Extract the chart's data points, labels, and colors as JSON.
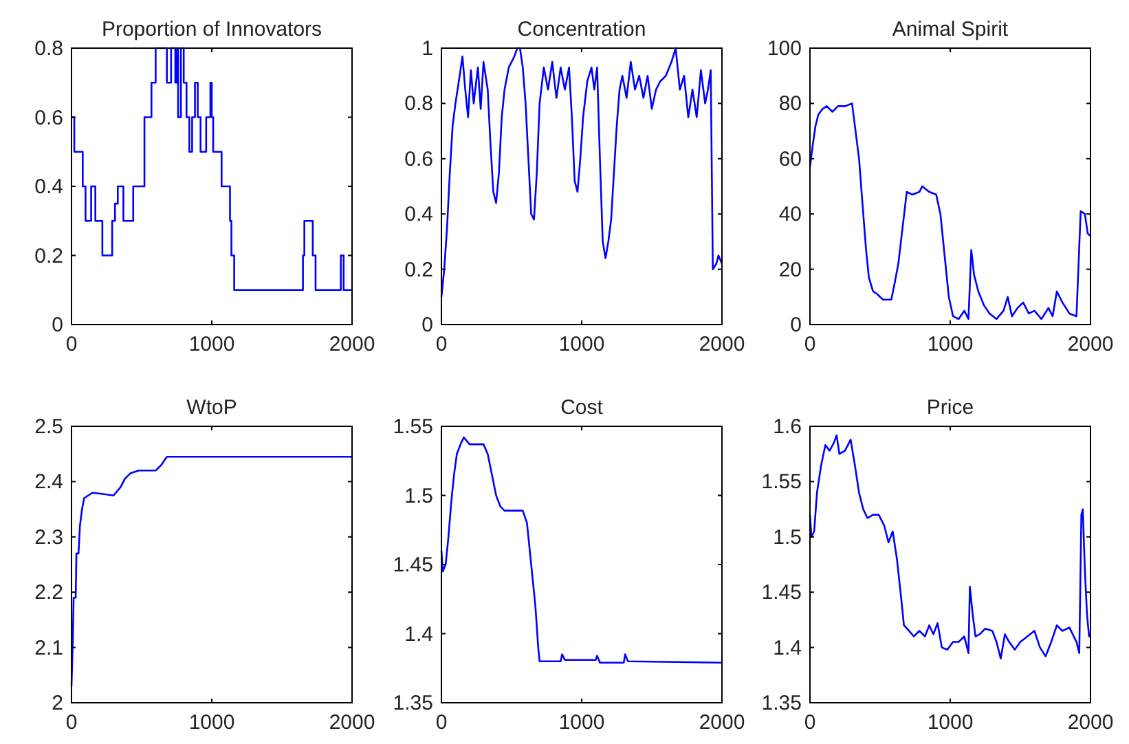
{
  "chart_data": [
    {
      "type": "step",
      "title": "Proportion of Innovators",
      "xlim": [
        0,
        2000
      ],
      "xticks": [
        0,
        1000,
        2000
      ],
      "ylim": [
        0,
        0.8
      ],
      "yticks": [
        0,
        0.2,
        0.4,
        0.6,
        0.8
      ],
      "grid": false,
      "series": [
        {
          "color": "#0000ff",
          "x": [
            0,
            20,
            80,
            100,
            140,
            170,
            220,
            290,
            310,
            330,
            370,
            440,
            520,
            570,
            600,
            680,
            710,
            740,
            750,
            760,
            780,
            800,
            820,
            840,
            860,
            880,
            900,
            920,
            960,
            990,
            1000,
            1010,
            1070,
            1130,
            1140,
            1160,
            1650,
            1660,
            1720,
            1740,
            1920,
            1940,
            2000
          ],
          "values": [
            0.6,
            0.5,
            0.4,
            0.3,
            0.4,
            0.3,
            0.2,
            0.3,
            0.35,
            0.4,
            0.3,
            0.4,
            0.6,
            0.7,
            0.8,
            0.7,
            0.8,
            0.7,
            0.8,
            0.6,
            0.8,
            0.7,
            0.6,
            0.5,
            0.6,
            0.7,
            0.6,
            0.5,
            0.6,
            0.7,
            0.6,
            0.5,
            0.4,
            0.3,
            0.2,
            0.1,
            0.2,
            0.3,
            0.2,
            0.1,
            0.2,
            0.1,
            0.1
          ]
        }
      ]
    },
    {
      "type": "line",
      "title": "Concentration",
      "xlim": [
        0,
        2000
      ],
      "xticks": [
        0,
        1000,
        2000
      ],
      "ylim": [
        0,
        1
      ],
      "yticks": [
        0,
        0.2,
        0.4,
        0.6,
        0.8,
        1
      ],
      "grid": false,
      "series": [
        {
          "color": "#0000ff",
          "x": [
            0,
            20,
            40,
            60,
            80,
            100,
            130,
            150,
            170,
            190,
            210,
            230,
            260,
            280,
            300,
            330,
            350,
            370,
            390,
            410,
            430,
            450,
            480,
            520,
            540,
            560,
            580,
            600,
            620,
            640,
            660,
            680,
            700,
            730,
            760,
            790,
            820,
            850,
            880,
            910,
            930,
            950,
            970,
            990,
            1010,
            1040,
            1070,
            1090,
            1110,
            1130,
            1150,
            1170,
            1190,
            1210,
            1230,
            1250,
            1270,
            1290,
            1320,
            1350,
            1380,
            1410,
            1440,
            1470,
            1500,
            1530,
            1560,
            1600,
            1640,
            1670,
            1700,
            1730,
            1760,
            1790,
            1820,
            1850,
            1880,
            1900,
            1920,
            1935,
            1960,
            1975,
            2000
          ],
          "values": [
            0.1,
            0.2,
            0.35,
            0.55,
            0.72,
            0.8,
            0.9,
            0.97,
            0.85,
            0.75,
            0.92,
            0.8,
            0.93,
            0.78,
            0.95,
            0.85,
            0.65,
            0.48,
            0.44,
            0.55,
            0.75,
            0.85,
            0.93,
            0.97,
            1,
            1,
            0.93,
            0.8,
            0.6,
            0.4,
            0.38,
            0.55,
            0.8,
            0.93,
            0.85,
            0.95,
            0.82,
            0.93,
            0.85,
            0.93,
            0.75,
            0.52,
            0.48,
            0.6,
            0.75,
            0.88,
            0.93,
            0.85,
            0.93,
            0.6,
            0.3,
            0.24,
            0.3,
            0.38,
            0.55,
            0.72,
            0.85,
            0.9,
            0.82,
            0.95,
            0.85,
            0.9,
            0.82,
            0.9,
            0.78,
            0.85,
            0.88,
            0.9,
            0.95,
            1,
            0.85,
            0.9,
            0.75,
            0.85,
            0.75,
            0.92,
            0.8,
            0.85,
            0.92,
            0.2,
            0.22,
            0.25,
            0.22
          ]
        }
      ]
    },
    {
      "type": "line",
      "title": "Animal Spirit",
      "xlim": [
        0,
        2000
      ],
      "xticks": [
        0,
        1000,
        2000
      ],
      "ylim": [
        0,
        100
      ],
      "yticks": [
        0,
        20,
        40,
        60,
        80,
        100
      ],
      "grid": false,
      "series": [
        {
          "color": "#0000ff",
          "x": [
            0,
            20,
            40,
            60,
            90,
            120,
            160,
            200,
            250,
            300,
            320,
            350,
            380,
            400,
            420,
            450,
            480,
            520,
            580,
            600,
            630,
            660,
            690,
            730,
            780,
            800,
            850,
            900,
            930,
            960,
            990,
            1020,
            1060,
            1100,
            1130,
            1150,
            1170,
            1200,
            1240,
            1280,
            1330,
            1380,
            1410,
            1440,
            1480,
            1520,
            1560,
            1600,
            1650,
            1700,
            1730,
            1760,
            1800,
            1850,
            1900,
            1930,
            1960,
            1980,
            2000
          ],
          "values": [
            57,
            65,
            72,
            76,
            78,
            79,
            77,
            79,
            79,
            80,
            72,
            60,
            40,
            27,
            17,
            12,
            11,
            9,
            9,
            14,
            22,
            35,
            48,
            47,
            48,
            50,
            48,
            47,
            40,
            25,
            10,
            3,
            2,
            5,
            2,
            27,
            18,
            12,
            7,
            4,
            2,
            5,
            10,
            3,
            6,
            8,
            4,
            5,
            2,
            6,
            3,
            12,
            8,
            4,
            3,
            41,
            40,
            33,
            32
          ]
        }
      ]
    },
    {
      "type": "line",
      "title": "WtoP",
      "xlim": [
        0,
        2000
      ],
      "xticks": [
        0,
        1000,
        2000
      ],
      "ylim": [
        2,
        2.5
      ],
      "yticks": [
        2,
        2.1,
        2.2,
        2.3,
        2.4,
        2.5
      ],
      "grid": false,
      "series": [
        {
          "color": "#0000ff",
          "x": [
            0,
            10,
            15,
            30,
            35,
            50,
            60,
            75,
            90,
            150,
            300,
            350,
            380,
            420,
            480,
            600,
            640,
            680,
            2000
          ],
          "values": [
            2.03,
            2.12,
            2.19,
            2.19,
            2.27,
            2.27,
            2.32,
            2.35,
            2.37,
            2.38,
            2.375,
            2.39,
            2.405,
            2.415,
            2.42,
            2.42,
            2.43,
            2.445,
            2.445
          ]
        }
      ]
    },
    {
      "type": "line",
      "title": "Cost",
      "xlim": [
        0,
        2000
      ],
      "xticks": [
        0,
        1000,
        2000
      ],
      "ylim": [
        1.35,
        1.55
      ],
      "yticks": [
        1.35,
        1.4,
        1.45,
        1.5,
        1.55
      ],
      "grid": false,
      "series": [
        {
          "color": "#0000ff",
          "x": [
            0,
            10,
            30,
            50,
            70,
            90,
            110,
            140,
            160,
            200,
            300,
            330,
            360,
            390,
            420,
            450,
            580,
            610,
            640,
            670,
            690,
            700,
            850,
            860,
            880,
            1100,
            1110,
            1130,
            1300,
            1310,
            1330,
            2000
          ],
          "values": [
            1.46,
            1.445,
            1.45,
            1.47,
            1.495,
            1.515,
            1.53,
            1.538,
            1.542,
            1.537,
            1.537,
            1.53,
            1.515,
            1.5,
            1.492,
            1.489,
            1.489,
            1.48,
            1.45,
            1.42,
            1.39,
            1.38,
            1.38,
            1.385,
            1.381,
            1.381,
            1.384,
            1.379,
            1.379,
            1.385,
            1.38,
            1.379
          ]
        }
      ]
    },
    {
      "type": "line",
      "title": "Price",
      "xlim": [
        0,
        2000
      ],
      "xticks": [
        0,
        1000,
        2000
      ],
      "ylim": [
        1.35,
        1.6
      ],
      "yticks": [
        1.35,
        1.4,
        1.45,
        1.5,
        1.55,
        1.6
      ],
      "grid": false,
      "series": [
        {
          "color": "#0000ff",
          "x": [
            0,
            10,
            30,
            50,
            80,
            110,
            140,
            170,
            190,
            210,
            250,
            290,
            320,
            350,
            380,
            410,
            450,
            490,
            530,
            560,
            590,
            620,
            650,
            670,
            700,
            740,
            780,
            820,
            850,
            880,
            910,
            940,
            980,
            1020,
            1060,
            1100,
            1130,
            1140,
            1160,
            1180,
            1210,
            1250,
            1300,
            1330,
            1360,
            1390,
            1420,
            1460,
            1500,
            1550,
            1600,
            1640,
            1680,
            1720,
            1760,
            1800,
            1850,
            1900,
            1920,
            1935,
            1945,
            1960,
            1975,
            1990,
            2000
          ],
          "values": [
            1.52,
            1.5,
            1.505,
            1.54,
            1.565,
            1.583,
            1.578,
            1.585,
            1.592,
            1.575,
            1.578,
            1.588,
            1.565,
            1.54,
            1.525,
            1.517,
            1.52,
            1.52,
            1.51,
            1.495,
            1.505,
            1.48,
            1.445,
            1.42,
            1.416,
            1.41,
            1.415,
            1.41,
            1.42,
            1.412,
            1.422,
            1.4,
            1.398,
            1.405,
            1.405,
            1.41,
            1.395,
            1.455,
            1.43,
            1.41,
            1.412,
            1.417,
            1.415,
            1.405,
            1.39,
            1.412,
            1.405,
            1.398,
            1.405,
            1.41,
            1.415,
            1.4,
            1.392,
            1.405,
            1.42,
            1.415,
            1.418,
            1.405,
            1.395,
            1.52,
            1.525,
            1.47,
            1.43,
            1.41,
            1.412
          ]
        }
      ]
    }
  ]
}
